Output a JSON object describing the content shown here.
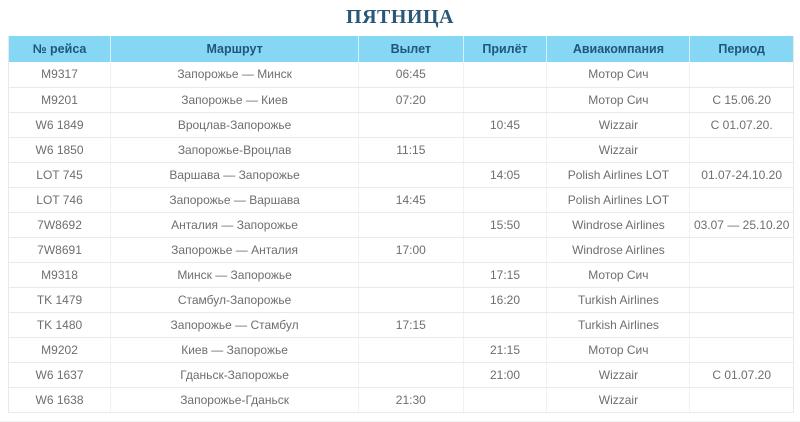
{
  "page": {
    "title": "ПЯТНИЦА"
  },
  "theme": {
    "header_background": "#86d7f4",
    "header_text": "#20567a",
    "title_color": "#2b5777",
    "body_text": "#6d6e71",
    "row_border": "#e9e9e9",
    "scrollbar_thumb": "#4ec6f5"
  },
  "table": {
    "columns": [
      {
        "key": "flight",
        "label": "№ рейса"
      },
      {
        "key": "route",
        "label": "Маршрут"
      },
      {
        "key": "departure",
        "label": "Вылет"
      },
      {
        "key": "arrival",
        "label": "Прилёт"
      },
      {
        "key": "airline",
        "label": "Авиакомпания"
      },
      {
        "key": "period",
        "label": "Период"
      }
    ],
    "rows": [
      {
        "flight": "M9317",
        "route": "Запорожье — Минск",
        "departure": "06:45",
        "arrival": "",
        "airline": "Мотор Сич",
        "period": ""
      },
      {
        "flight": "M9201",
        "route": "Запорожье — Киев",
        "departure": "07:20",
        "arrival": "",
        "airline": "Мотор Сич",
        "period": "С 15.06.20"
      },
      {
        "flight": "W6 1849",
        "route": "Вроцлав-Запорожье",
        "departure": "",
        "arrival": "10:45",
        "airline": "Wizzair",
        "period": "С 01.07.20."
      },
      {
        "flight": "W6 1850",
        "route": "Запорожье-Вроцлав",
        "departure": "11:15",
        "arrival": "",
        "airline": "Wizzair",
        "period": ""
      },
      {
        "flight": "LOT 745",
        "route": "Варшава — Запорожье",
        "departure": "",
        "arrival": "14:05",
        "airline": "Polish Airlines LOT",
        "period": "01.07-24.10.20"
      },
      {
        "flight": "LOT 746",
        "route": "Запорожье — Варшава",
        "departure": "14:45",
        "arrival": "",
        "airline": "Polish Airlines LOT",
        "period": ""
      },
      {
        "flight": "7W8692",
        "route": "Анталия — Запорожье",
        "departure": "",
        "arrival": "15:50",
        "airline": "Windrose Airlines",
        "period": "03.07 — 25.10.20"
      },
      {
        "flight": "7W8691",
        "route": "Запорожье — Анталия",
        "departure": "17:00",
        "arrival": "",
        "airline": "Windrose Airlines",
        "period": ""
      },
      {
        "flight": "M9318",
        "route": "Минск — Запорожье",
        "departure": "",
        "arrival": "17:15",
        "airline": "Мотор Сич",
        "period": ""
      },
      {
        "flight": "TK 1479",
        "route": "Стамбул-Запорожье",
        "departure": "",
        "arrival": "16:20",
        "airline": "Turkish Airlines",
        "period": ""
      },
      {
        "flight": "TK 1480",
        "route": "Запорожье — Стамбул",
        "departure": "17:15",
        "arrival": "",
        "airline": "Turkish Airlines",
        "period": ""
      },
      {
        "flight": "M9202",
        "route": "Киев — Запорожье",
        "departure": "",
        "arrival": "21:15",
        "airline": "Мотор Сич",
        "period": ""
      },
      {
        "flight": "W6 1637",
        "route": "Гданьск-Запорожье",
        "departure": "",
        "arrival": "21:00",
        "airline": "Wizzair",
        "period": "С 01.07.20"
      },
      {
        "flight": "W6 1638",
        "route": "Запорожье-Гданьск",
        "departure": "21:30",
        "arrival": "",
        "airline": "Wizzair",
        "period": ""
      }
    ]
  }
}
